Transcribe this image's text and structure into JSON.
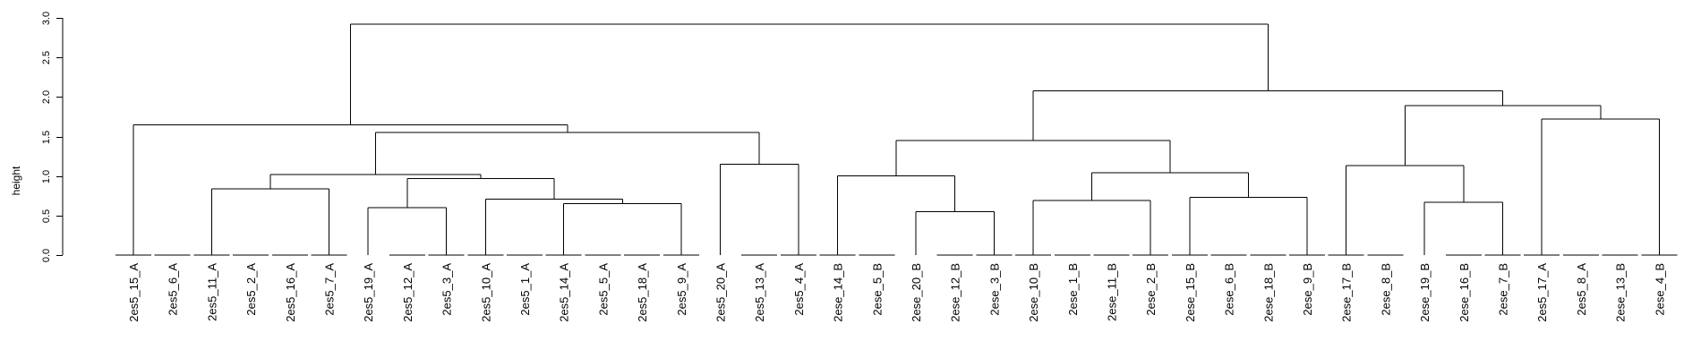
{
  "chart_data": {
    "type": "dendrogram",
    "title": "",
    "xlabel": "",
    "ylabel": "height",
    "ylim": [
      0,
      3.0
    ],
    "yticks": [
      {
        "value": 0.0,
        "label": "0.0"
      },
      {
        "value": 0.5,
        "label": "0.5"
      },
      {
        "value": 1.0,
        "label": "1.0"
      },
      {
        "value": 1.5,
        "label": "1.5"
      },
      {
        "value": 2.0,
        "label": "2.0"
      },
      {
        "value": 2.5,
        "label": "2.5"
      },
      {
        "value": 3.0,
        "label": "3.0"
      }
    ],
    "leaves": [
      "2es5_15_A",
      "2es5_6_A",
      "2es5_11_A",
      "2es5_2_A",
      "2es5_16_A",
      "2es5_7_A",
      "2es5_19_A",
      "2es5_12_A",
      "2es5_3_A",
      "2es5_10_A",
      "2es5_1_A",
      "2es5_14_A",
      "2es5_5_A",
      "2es5_18_A",
      "2es5_9_A",
      "2es5_20_A",
      "2es5_13_A",
      "2es5_4_A",
      "2ese_14_B",
      "2ese_5_B",
      "2ese_20_B",
      "2ese_12_B",
      "2ese_3_B",
      "2ese_10_B",
      "2ese_1_B",
      "2ese_11_B",
      "2ese_2_B",
      "2ese_15_B",
      "2ese_6_B",
      "2ese_18_B",
      "2ese_9_B",
      "2ese_17_B",
      "2ese_8_B",
      "2ese_19_B",
      "2ese_16_B",
      "2ese_7_B",
      "2es5_17_A",
      "2es5_8_A",
      "2ese_13_B",
      "2ese_4_B"
    ],
    "merges": [
      [
        1,
        2,
        0.0
      ],
      [
        3,
        4,
        0.0
      ],
      [
        5,
        6,
        0.0
      ],
      [
        8,
        9,
        0.0
      ],
      [
        10,
        11,
        0.0
      ],
      [
        12,
        13,
        0.0
      ],
      [
        14,
        15,
        0.0
      ],
      [
        17,
        18,
        0.0
      ],
      [
        19,
        20,
        0.0
      ],
      [
        22,
        23,
        0.0
      ],
      [
        24,
        25,
        0.0
      ],
      [
        26,
        27,
        0.0
      ],
      [
        28,
        29,
        0.0
      ],
      [
        30,
        31,
        0.0
      ],
      [
        32,
        33,
        0.0
      ],
      [
        35,
        36,
        0.0
      ],
      [
        37,
        38,
        0.0
      ],
      [
        39,
        40,
        0.0
      ],
      [
        -1,
        -2,
        0.0
      ],
      [
        1,
        2,
        0.0
      ]
    ],
    "tree": {
      "h": 2.92,
      "c": [
        {
          "h": 1.65,
          "c": [
            {
              "l": [
                0,
                1
              ],
              "h": 0.0
            },
            {
              "h": 1.55,
              "c": [
                {
                  "h": 1.02,
                  "c": [
                    {
                      "h": 0.84,
                      "c": [
                        {
                          "l": [
                            2,
                            3
                          ],
                          "h": 0.0
                        },
                        {
                          "l": [
                            4,
                            5
                          ],
                          "h": 0.0
                        }
                      ]
                    },
                    {
                      "h": 0.97,
                      "c": [
                        {
                          "h": 0.6,
                          "c": [
                            {
                              "leaf": 6
                            },
                            {
                              "l": [
                                7,
                                8
                              ],
                              "h": 0.0
                            }
                          ]
                        },
                        {
                          "h": 0.71,
                          "c": [
                            {
                              "l": [
                                9,
                                10
                              ],
                              "h": 0.0
                            },
                            {
                              "h": 0.65,
                              "c": [
                                {
                                  "l": [
                                    11,
                                    12
                                  ],
                                  "h": 0.0
                                },
                                {
                                  "l": [
                                    13,
                                    14
                                  ],
                                  "h": 0.0
                                }
                              ]
                            }
                          ]
                        }
                      ]
                    }
                  ]
                },
                {
                  "h": 1.15,
                  "c": [
                    {
                      "leaf": 15
                    },
                    {
                      "l": [
                        16,
                        17
                      ],
                      "h": 0.0
                    }
                  ]
                }
              ]
            }
          ]
        },
        {
          "h": 2.08,
          "c": [
            {
              "h": 1.45,
              "c": [
                {
                  "h": 1.0,
                  "c": [
                    {
                      "l": [
                        18,
                        19
                      ],
                      "h": 0.0
                    },
                    {
                      "h": 0.55,
                      "c": [
                        {
                          "leaf": 20
                        },
                        {
                          "l": [
                            21,
                            22
                          ],
                          "h": 0.0
                        }
                      ]
                    }
                  ]
                },
                {
                  "h": 1.04,
                  "c": [
                    {
                      "h": 0.69,
                      "c": [
                        {
                          "l": [
                            23,
                            24
                          ],
                          "h": 0.0
                        },
                        {
                          "l": [
                            25,
                            26
                          ],
                          "h": 0.0
                        }
                      ]
                    },
                    {
                      "h": 0.73,
                      "c": [
                        {
                          "l": [
                            27,
                            28
                          ],
                          "h": 0.0
                        },
                        {
                          "l": [
                            29,
                            30
                          ],
                          "h": 0.0
                        }
                      ]
                    }
                  ]
                }
              ]
            },
            {
              "h": 1.89,
              "c": [
                {
                  "h": 1.13,
                  "c": [
                    {
                      "l": [
                        31,
                        32
                      ],
                      "h": 0.0
                    },
                    {
                      "h": 0.67,
                      "c": [
                        {
                          "leaf": 33
                        },
                        {
                          "l": [
                            34,
                            35
                          ],
                          "h": 0.0
                        }
                      ]
                    }
                  ]
                },
                {
                  "h": 1.72,
                  "c": [
                    {
                      "l": [
                        36,
                        37
                      ],
                      "h": 0.0
                    },
                    {
                      "l": [
                        38,
                        39
                      ],
                      "h": 0.0
                    }
                  ]
                }
              ]
            }
          ]
        }
      ]
    }
  }
}
